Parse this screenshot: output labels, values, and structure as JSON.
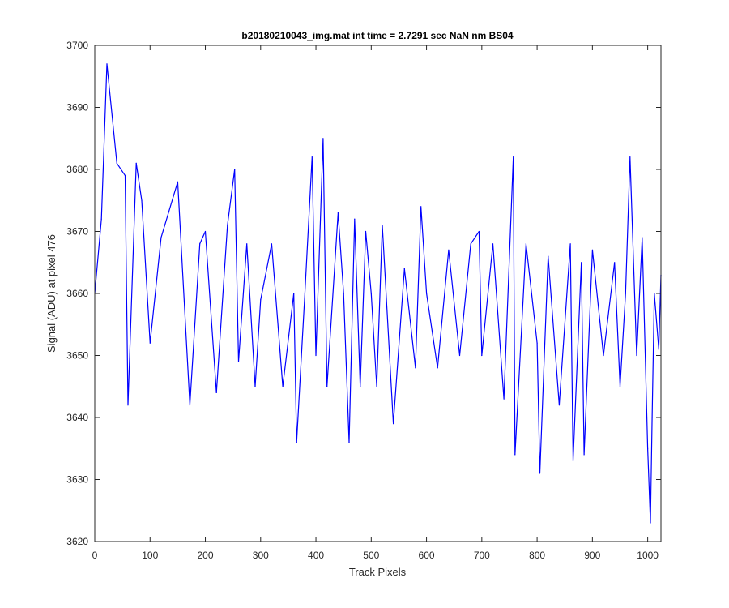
{
  "chart_data": {
    "type": "line",
    "title": "b20180210043_img.mat int time = 2.7291 sec  NaN nm BS04",
    "xlabel": "Track Pixels",
    "ylabel": "Signal (ADU) at pixel 476",
    "xlim": [
      0,
      1024
    ],
    "ylim": [
      3620,
      3700
    ],
    "xticks": [
      0,
      100,
      200,
      300,
      400,
      500,
      600,
      700,
      800,
      900,
      1000
    ],
    "yticks": [
      3620,
      3630,
      3640,
      3650,
      3660,
      3670,
      3680,
      3690,
      3700
    ],
    "grid": false,
    "series": [
      {
        "color": "#0000ff",
        "x": [
          0,
          12,
          22,
          40,
          55,
          60,
          75,
          85,
          100,
          120,
          150,
          172,
          190,
          200,
          220,
          240,
          253,
          260,
          275,
          290,
          300,
          320,
          340,
          360,
          365,
          380,
          393,
          400,
          413,
          420,
          440,
          450,
          460,
          470,
          480,
          490,
          500,
          510,
          520,
          540,
          560,
          580,
          590,
          600,
          620,
          640,
          660,
          680,
          695,
          700,
          720,
          740,
          757,
          760,
          780,
          790,
          800,
          805,
          820,
          840,
          860,
          865,
          880,
          885,
          900,
          920,
          940,
          950,
          960,
          968,
          980,
          990,
          1000,
          1005,
          1008,
          1012,
          1020,
          1024
        ],
        "y": [
          3660,
          3672,
          3697,
          3681,
          3679,
          3642,
          3681,
          3675,
          3652,
          3669,
          3678,
          3642,
          3668,
          3670,
          3644,
          3671,
          3680,
          3649,
          3668,
          3645,
          3659,
          3668,
          3645,
          3660,
          3636,
          3660,
          3682,
          3650,
          3685,
          3645,
          3673,
          3660,
          3636,
          3672,
          3645,
          3670,
          3660,
          3645,
          3671,
          3639,
          3664,
          3648,
          3674,
          3660,
          3648,
          3667,
          3650,
          3668,
          3670,
          3650,
          3668,
          3643,
          3682,
          3634,
          3668,
          3660,
          3652,
          3631,
          3666,
          3642,
          3668,
          3633,
          3665,
          3634,
          3667,
          3650,
          3665,
          3645,
          3660,
          3682,
          3650,
          3669,
          3635,
          3623,
          3640,
          3660,
          3651,
          3663
        ]
      }
    ]
  }
}
